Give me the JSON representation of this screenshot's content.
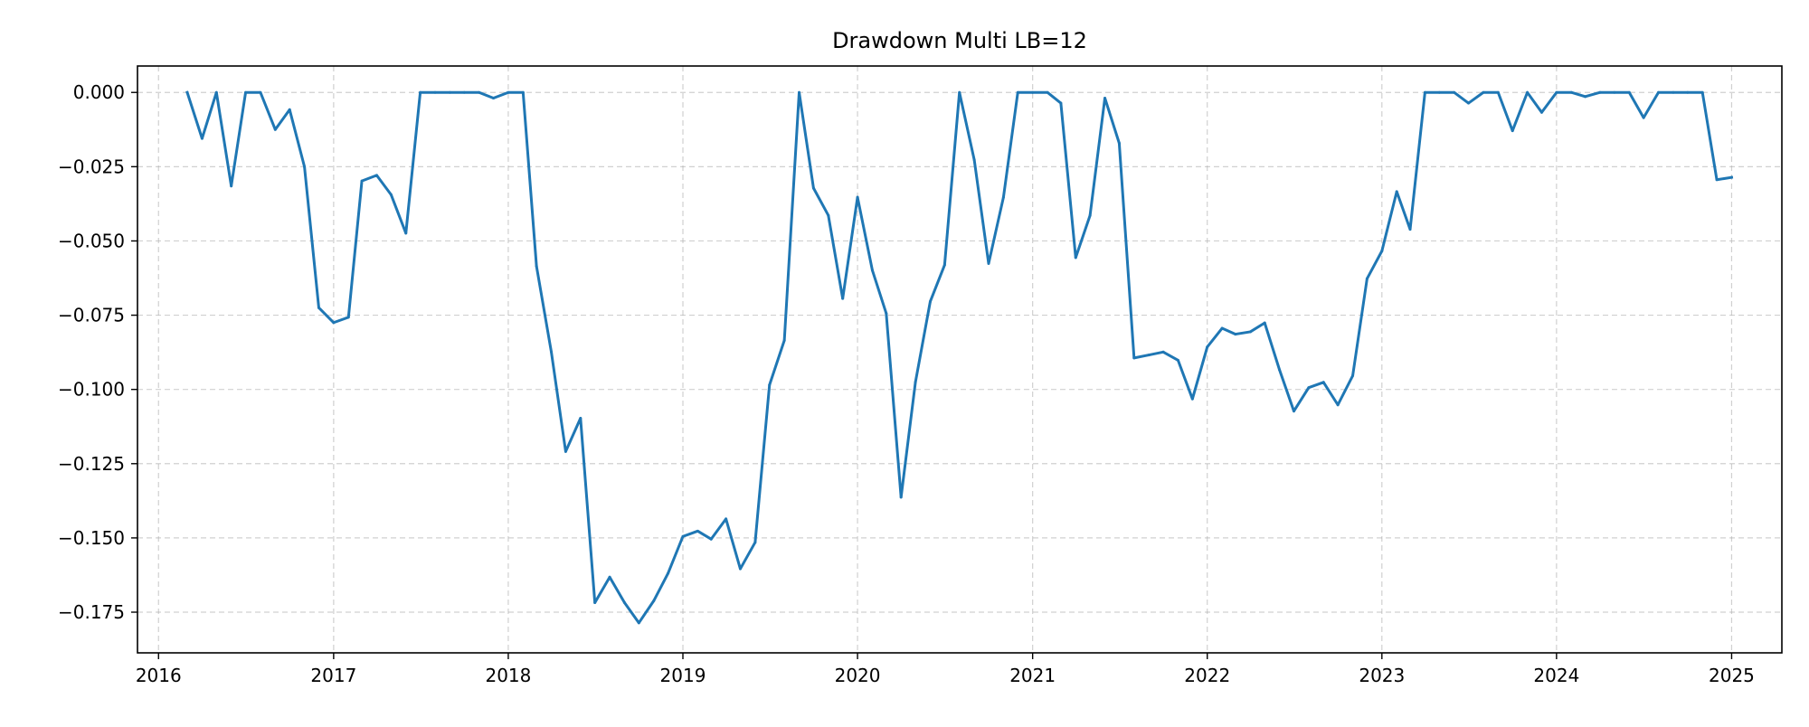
{
  "chart_data": {
    "type": "line",
    "title": "Drawdown Multi LB=12",
    "xlabel": "",
    "ylabel": "",
    "xlim": [
      "2015-11-18",
      "2025-04-16"
    ],
    "ylim": [
      -0.1887,
      0.0089
    ],
    "x_ticks": [
      "2016-01-01",
      "2017-01-01",
      "2018-01-01",
      "2019-01-01",
      "2020-01-01",
      "2021-01-01",
      "2022-01-01",
      "2023-01-01",
      "2024-01-01",
      "2025-01-01"
    ],
    "x_tick_labels": [
      "2016",
      "2017",
      "2018",
      "2019",
      "2020",
      "2021",
      "2022",
      "2023",
      "2024",
      "2025"
    ],
    "y_ticks": [
      0.0,
      -0.025,
      -0.05,
      -0.075,
      -0.1,
      -0.125,
      -0.15,
      -0.175
    ],
    "y_tick_labels": [
      "0.000",
      "−0.025",
      "−0.050",
      "−0.075",
      "−0.100",
      "−0.125",
      "−0.150",
      "−0.175"
    ],
    "grid": true,
    "legend": "none",
    "series": [
      {
        "color": "#1f77b4",
        "points": [
          [
            "2016-03-01",
            0.0
          ],
          [
            "2016-04-01",
            -0.0155
          ],
          [
            "2016-05-01",
            0.0
          ],
          [
            "2016-06-01",
            -0.0315
          ],
          [
            "2016-07-01",
            0.0
          ],
          [
            "2016-08-01",
            0.0
          ],
          [
            "2016-09-01",
            -0.0125
          ],
          [
            "2016-10-01",
            -0.0058
          ],
          [
            "2016-11-01",
            -0.025
          ],
          [
            "2016-12-01",
            -0.0725
          ],
          [
            "2017-01-01",
            -0.0775
          ],
          [
            "2017-02-01",
            -0.0757
          ],
          [
            "2017-03-01",
            -0.0298
          ],
          [
            "2017-04-01",
            -0.0279
          ],
          [
            "2017-05-01",
            -0.0344
          ],
          [
            "2017-06-01",
            -0.0474
          ],
          [
            "2017-07-01",
            0.0
          ],
          [
            "2017-08-01",
            0.0
          ],
          [
            "2017-09-01",
            0.0
          ],
          [
            "2017-10-01",
            0.0
          ],
          [
            "2017-11-01",
            0.0
          ],
          [
            "2017-12-01",
            -0.0019
          ],
          [
            "2018-01-01",
            0.0
          ],
          [
            "2018-02-01",
            0.0
          ],
          [
            "2018-03-01",
            -0.0585
          ],
          [
            "2018-04-01",
            -0.0874
          ],
          [
            "2018-05-01",
            -0.1209
          ],
          [
            "2018-06-01",
            -0.1097
          ],
          [
            "2018-07-01",
            -0.1718
          ],
          [
            "2018-08-01",
            -0.1632
          ],
          [
            "2018-09-01",
            -0.1718
          ],
          [
            "2018-10-01",
            -0.1786
          ],
          [
            "2018-11-01",
            -0.1712
          ],
          [
            "2018-12-01",
            -0.1619
          ],
          [
            "2019-01-01",
            -0.1495
          ],
          [
            "2019-02-01",
            -0.1477
          ],
          [
            "2019-03-01",
            -0.1504
          ],
          [
            "2019-04-01",
            -0.1436
          ],
          [
            "2019-05-01",
            -0.1604
          ],
          [
            "2019-06-01",
            -0.1515
          ],
          [
            "2019-07-01",
            -0.0985
          ],
          [
            "2019-08-01",
            -0.0835
          ],
          [
            "2019-09-01",
            0.0
          ],
          [
            "2019-10-01",
            -0.0322
          ],
          [
            "2019-11-01",
            -0.0414
          ],
          [
            "2019-12-01",
            -0.0694
          ],
          [
            "2020-01-01",
            -0.0353
          ],
          [
            "2020-02-01",
            -0.0599
          ],
          [
            "2020-03-01",
            -0.0744
          ],
          [
            "2020-04-01",
            -0.1363
          ],
          [
            "2020-05-01",
            -0.0976
          ],
          [
            "2020-06-01",
            -0.0704
          ],
          [
            "2020-07-01",
            -0.0581
          ],
          [
            "2020-08-01",
            0.0
          ],
          [
            "2020-09-01",
            -0.0227
          ],
          [
            "2020-10-01",
            -0.0576
          ],
          [
            "2020-11-01",
            -0.0353
          ],
          [
            "2020-12-01",
            0.0
          ],
          [
            "2021-01-01",
            0.0
          ],
          [
            "2021-02-01",
            0.0
          ],
          [
            "2021-03-01",
            -0.0036
          ],
          [
            "2021-04-01",
            -0.0556
          ],
          [
            "2021-05-01",
            -0.0414
          ],
          [
            "2021-06-01",
            -0.0019
          ],
          [
            "2021-07-01",
            -0.0171
          ],
          [
            "2021-08-01",
            -0.0894
          ],
          [
            "2021-09-01",
            -0.0884
          ],
          [
            "2021-10-01",
            -0.0874
          ],
          [
            "2021-11-01",
            -0.0902
          ],
          [
            "2021-12-01",
            -0.1032
          ],
          [
            "2022-01-01",
            -0.0857
          ],
          [
            "2022-02-01",
            -0.0794
          ],
          [
            "2022-03-01",
            -0.0814
          ],
          [
            "2022-04-01",
            -0.0806
          ],
          [
            "2022-05-01",
            -0.0776
          ],
          [
            "2022-06-01",
            -0.0934
          ],
          [
            "2022-07-01",
            -0.1073
          ],
          [
            "2022-08-01",
            -0.0994
          ],
          [
            "2022-09-01",
            -0.0976
          ],
          [
            "2022-10-01",
            -0.1052
          ],
          [
            "2022-11-01",
            -0.0954
          ],
          [
            "2022-12-01",
            -0.0627
          ],
          [
            "2023-01-01",
            -0.0534
          ],
          [
            "2023-02-01",
            -0.0334
          ],
          [
            "2023-03-01",
            -0.0461
          ],
          [
            "2023-04-01",
            0.0
          ],
          [
            "2023-05-01",
            0.0
          ],
          [
            "2023-06-01",
            0.0
          ],
          [
            "2023-07-01",
            -0.0036
          ],
          [
            "2023-08-01",
            0.0
          ],
          [
            "2023-09-01",
            0.0
          ],
          [
            "2023-10-01",
            -0.0129
          ],
          [
            "2023-11-01",
            0.0
          ],
          [
            "2023-12-01",
            -0.0067
          ],
          [
            "2024-01-01",
            0.0
          ],
          [
            "2024-02-01",
            0.0
          ],
          [
            "2024-03-01",
            -0.0014
          ],
          [
            "2024-04-01",
            0.0
          ],
          [
            "2024-05-01",
            0.0
          ],
          [
            "2024-06-01",
            0.0
          ],
          [
            "2024-07-01",
            -0.0085
          ],
          [
            "2024-08-01",
            0.0
          ],
          [
            "2024-09-01",
            0.0
          ],
          [
            "2024-10-01",
            0.0
          ],
          [
            "2024-11-01",
            0.0
          ],
          [
            "2024-12-01",
            -0.0294
          ],
          [
            "2025-01-01",
            -0.0286
          ]
        ]
      }
    ]
  }
}
